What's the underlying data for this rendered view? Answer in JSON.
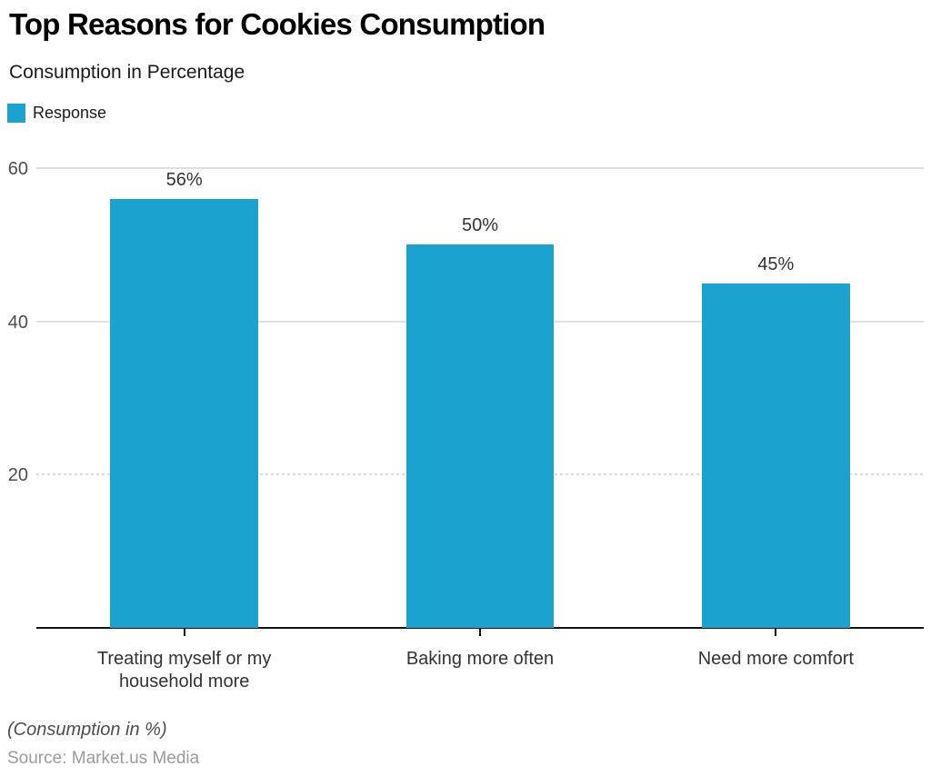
{
  "header": {
    "title": "Top Reasons for Cookies Consumption",
    "subtitle": "Consumption in Percentage"
  },
  "legend": {
    "label": "Response",
    "color": "#1BA2CF"
  },
  "chart_data": {
    "type": "bar",
    "title": "Top Reasons for Cookies Consumption",
    "subtitle": "Consumption in Percentage",
    "categories": [
      "Treating myself or my household more",
      "Baking more often",
      "Need more comfort"
    ],
    "series": [
      {
        "name": "Response",
        "values": [
          56,
          50,
          45
        ],
        "color": "#1BA2CF"
      }
    ],
    "data_labels": [
      "56%",
      "50%",
      "45%"
    ],
    "xlabel": "",
    "ylabel": "",
    "ylim": [
      0,
      60
    ],
    "yticks": [
      {
        "value": 20,
        "label": "20",
        "line_style": "dashed"
      },
      {
        "value": 40,
        "label": "40",
        "line_style": "solid"
      },
      {
        "value": 60,
        "label": "60",
        "line_style": "solid"
      }
    ],
    "grid": true,
    "legend_position": "top-left",
    "bar_band_fill_ratio": 0.5
  },
  "footer": {
    "note": "(Consumption in %)",
    "source": "Source: Market.us Media"
  }
}
